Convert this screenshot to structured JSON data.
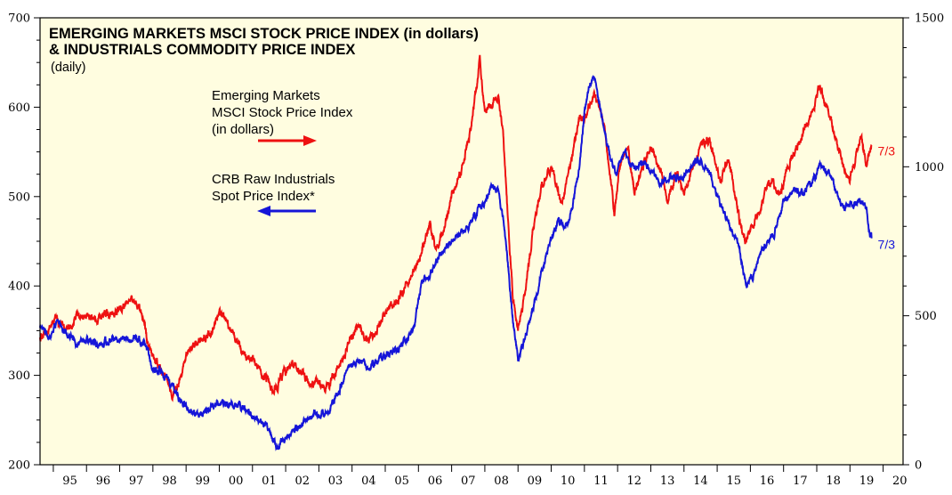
{
  "chart_data": {
    "type": "line",
    "title_lines": [
      "EMERGING MARKETS MSCI STOCK PRICE INDEX (in dollars)",
      "& INDUSTRIALS COMMODITY PRICE INDEX"
    ],
    "subtitle": "(daily)",
    "x_tick_labels": [
      "95",
      "96",
      "97",
      "98",
      "99",
      "00",
      "01",
      "02",
      "03",
      "04",
      "05",
      "06",
      "07",
      "08",
      "09",
      "10",
      "11",
      "12",
      "13",
      "14",
      "15",
      "16",
      "17",
      "18",
      "19",
      "20"
    ],
    "xlim": [
      1994.6,
      2020.6
    ],
    "left_axis": {
      "ylim": [
        200,
        700
      ],
      "ticks": [
        200,
        300,
        400,
        500,
        600,
        700
      ]
    },
    "right_axis": {
      "ylim": [
        0,
        1500
      ],
      "ticks": [
        0,
        500,
        1000,
        1500
      ]
    },
    "colors": {
      "em": "#ee1111",
      "crb": "#1515d8",
      "background": "#fffde0"
    },
    "series": [
      {
        "name_lines": [
          "Emerging Markets",
          "MSCI Stock Price Index",
          "(in dollars)"
        ],
        "axis": "left",
        "color": "#ee1111",
        "end_label": "7/3",
        "points": [
          [
            1994.6,
            340
          ],
          [
            1994.9,
            355
          ],
          [
            1995.1,
            362
          ],
          [
            1995.4,
            350
          ],
          [
            1995.7,
            365
          ],
          [
            1996.0,
            368
          ],
          [
            1996.3,
            360
          ],
          [
            1996.6,
            368
          ],
          [
            1996.9,
            372
          ],
          [
            1997.2,
            378
          ],
          [
            1997.45,
            388
          ],
          [
            1997.6,
            372
          ],
          [
            1997.8,
            345
          ],
          [
            1998.0,
            320
          ],
          [
            1998.2,
            310
          ],
          [
            1998.4,
            300
          ],
          [
            1998.6,
            280
          ],
          [
            1998.75,
            290
          ],
          [
            1999.0,
            318
          ],
          [
            1999.2,
            332
          ],
          [
            1999.5,
            340
          ],
          [
            1999.8,
            350
          ],
          [
            2000.0,
            373
          ],
          [
            2000.2,
            360
          ],
          [
            2000.5,
            340
          ],
          [
            2000.8,
            320
          ],
          [
            2001.0,
            318
          ],
          [
            2001.2,
            305
          ],
          [
            2001.4,
            300
          ],
          [
            2001.65,
            284
          ],
          [
            2001.9,
            300
          ],
          [
            2002.2,
            315
          ],
          [
            2002.5,
            305
          ],
          [
            2002.75,
            290
          ],
          [
            2003.0,
            292
          ],
          [
            2003.2,
            285
          ],
          [
            2003.5,
            300
          ],
          [
            2003.8,
            325
          ],
          [
            2004.0,
            345
          ],
          [
            2004.25,
            358
          ],
          [
            2004.4,
            338
          ],
          [
            2004.7,
            348
          ],
          [
            2005.0,
            370
          ],
          [
            2005.4,
            385
          ],
          [
            2005.8,
            410
          ],
          [
            2006.1,
            440
          ],
          [
            2006.35,
            470
          ],
          [
            2006.5,
            445
          ],
          [
            2006.8,
            465
          ],
          [
            2007.0,
            500
          ],
          [
            2007.3,
            530
          ],
          [
            2007.55,
            570
          ],
          [
            2007.85,
            650
          ],
          [
            2008.0,
            595
          ],
          [
            2008.2,
            600
          ],
          [
            2008.4,
            615
          ],
          [
            2008.55,
            570
          ],
          [
            2008.7,
            470
          ],
          [
            2008.85,
            385
          ],
          [
            2009.0,
            355
          ],
          [
            2009.2,
            390
          ],
          [
            2009.45,
            460
          ],
          [
            2009.7,
            510
          ],
          [
            2010.0,
            535
          ],
          [
            2010.3,
            490
          ],
          [
            2010.6,
            540
          ],
          [
            2010.85,
            590
          ],
          [
            2011.0,
            585
          ],
          [
            2011.3,
            615
          ],
          [
            2011.6,
            580
          ],
          [
            2011.8,
            520
          ],
          [
            2011.9,
            480
          ],
          [
            2012.1,
            540
          ],
          [
            2012.3,
            555
          ],
          [
            2012.5,
            505
          ],
          [
            2012.8,
            540
          ],
          [
            2013.0,
            555
          ],
          [
            2013.3,
            530
          ],
          [
            2013.5,
            500
          ],
          [
            2013.8,
            525
          ],
          [
            2014.0,
            500
          ],
          [
            2014.25,
            530
          ],
          [
            2014.5,
            558
          ],
          [
            2014.75,
            565
          ],
          [
            2014.9,
            545
          ],
          [
            2015.1,
            520
          ],
          [
            2015.35,
            545
          ],
          [
            2015.55,
            500
          ],
          [
            2015.7,
            465
          ],
          [
            2015.85,
            450
          ],
          [
            2016.1,
            470
          ],
          [
            2016.35,
            495
          ],
          [
            2016.65,
            520
          ],
          [
            2016.9,
            502
          ],
          [
            2017.1,
            530
          ],
          [
            2017.4,
            555
          ],
          [
            2017.7,
            580
          ],
          [
            2017.95,
            605
          ],
          [
            2018.1,
            625
          ],
          [
            2018.3,
            600
          ],
          [
            2018.55,
            570
          ],
          [
            2018.8,
            535
          ],
          [
            2019.0,
            520
          ],
          [
            2019.2,
            550
          ],
          [
            2019.35,
            565
          ],
          [
            2019.5,
            535
          ],
          [
            2019.55,
            550
          ],
          [
            2019.65,
            558
          ]
        ]
      },
      {
        "name_lines": [
          "CRB Raw Industrials",
          "Spot Price Index*"
        ],
        "axis": "right",
        "color": "#1515d8",
        "end_label": "7/3",
        "points": [
          [
            1994.6,
            460
          ],
          [
            1994.9,
            430
          ],
          [
            1995.1,
            470
          ],
          [
            1995.4,
            440
          ],
          [
            1995.7,
            410
          ],
          [
            1996.0,
            420
          ],
          [
            1996.4,
            400
          ],
          [
            1996.8,
            430
          ],
          [
            1997.2,
            420
          ],
          [
            1997.5,
            430
          ],
          [
            1997.8,
            395
          ],
          [
            1998.0,
            320
          ],
          [
            1998.3,
            310
          ],
          [
            1998.6,
            260
          ],
          [
            1998.9,
            210
          ],
          [
            1999.1,
            185
          ],
          [
            1999.4,
            165
          ],
          [
            1999.7,
            185
          ],
          [
            2000.0,
            210
          ],
          [
            2000.3,
            195
          ],
          [
            2000.6,
            200
          ],
          [
            2000.9,
            170
          ],
          [
            2001.2,
            150
          ],
          [
            2001.5,
            120
          ],
          [
            2001.75,
            60
          ],
          [
            2001.9,
            75
          ],
          [
            2002.2,
            110
          ],
          [
            2002.5,
            135
          ],
          [
            2002.8,
            170
          ],
          [
            2003.0,
            175
          ],
          [
            2003.3,
            185
          ],
          [
            2003.6,
            250
          ],
          [
            2003.9,
            320
          ],
          [
            2004.2,
            350
          ],
          [
            2004.5,
            320
          ],
          [
            2004.8,
            350
          ],
          [
            2005.0,
            370
          ],
          [
            2005.3,
            380
          ],
          [
            2005.6,
            410
          ],
          [
            2005.85,
            460
          ],
          [
            2006.1,
            610
          ],
          [
            2006.4,
            650
          ],
          [
            2006.7,
            720
          ],
          [
            2006.9,
            740
          ],
          [
            2007.2,
            770
          ],
          [
            2007.5,
            800
          ],
          [
            2007.8,
            860
          ],
          [
            2008.0,
            880
          ],
          [
            2008.2,
            940
          ],
          [
            2008.4,
            920
          ],
          [
            2008.55,
            840
          ],
          [
            2008.7,
            670
          ],
          [
            2008.85,
            480
          ],
          [
            2009.0,
            360
          ],
          [
            2009.2,
            420
          ],
          [
            2009.5,
            550
          ],
          [
            2009.8,
            690
          ],
          [
            2010.0,
            760
          ],
          [
            2010.2,
            820
          ],
          [
            2010.5,
            800
          ],
          [
            2010.8,
            960
          ],
          [
            2011.0,
            1180
          ],
          [
            2011.2,
            1290
          ],
          [
            2011.3,
            1310
          ],
          [
            2011.5,
            1180
          ],
          [
            2011.8,
            1020
          ],
          [
            2011.95,
            980
          ],
          [
            2012.2,
            1050
          ],
          [
            2012.5,
            990
          ],
          [
            2012.8,
            1020
          ],
          [
            2013.0,
            1000
          ],
          [
            2013.3,
            940
          ],
          [
            2013.6,
            970
          ],
          [
            2013.9,
            960
          ],
          [
            2014.2,
            1000
          ],
          [
            2014.5,
            1020
          ],
          [
            2014.8,
            970
          ],
          [
            2015.0,
            900
          ],
          [
            2015.3,
            820
          ],
          [
            2015.6,
            750
          ],
          [
            2015.9,
            600
          ],
          [
            2016.1,
            640
          ],
          [
            2016.4,
            730
          ],
          [
            2016.7,
            770
          ],
          [
            2017.0,
            880
          ],
          [
            2017.3,
            920
          ],
          [
            2017.6,
            910
          ],
          [
            2017.9,
            960
          ],
          [
            2018.1,
            1000
          ],
          [
            2018.3,
            990
          ],
          [
            2018.5,
            940
          ],
          [
            2018.8,
            860
          ],
          [
            2019.0,
            870
          ],
          [
            2019.3,
            890
          ],
          [
            2019.5,
            860
          ],
          [
            2019.6,
            780
          ],
          [
            2019.65,
            760
          ]
        ]
      }
    ]
  }
}
